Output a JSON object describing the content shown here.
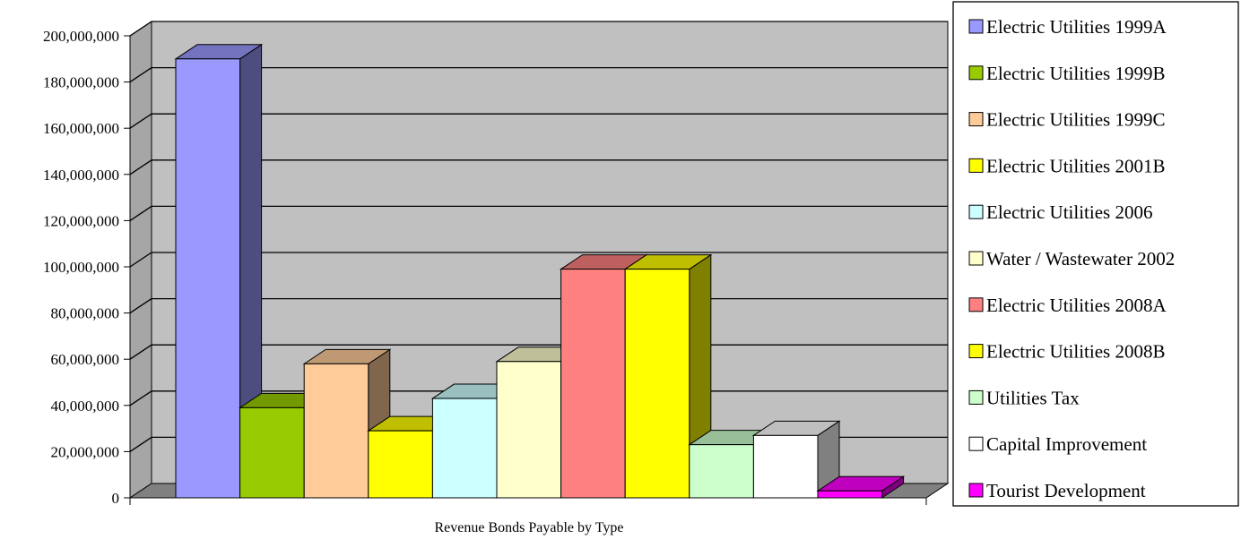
{
  "chart_data": {
    "type": "bar",
    "style": "3d-clustered-column",
    "xlabel": "Revenue Bonds Payable by Type",
    "ylabel": "",
    "ylim": [
      0,
      200000000
    ],
    "yticks": [
      "0",
      "20,000,000",
      "40,000,000",
      "60,000,000",
      "80,000,000",
      "100,000,000",
      "120,000,000",
      "140,000,000",
      "160,000,000",
      "180,000,000",
      "200,000,000"
    ],
    "grid": true,
    "legend_position": "right",
    "colors": {
      "plot_back_wall": "#c0c0c0",
      "floor": "#808080",
      "gridline": "#000000"
    },
    "series": [
      {
        "name": "Electric Utilities 1999A",
        "value": 190000000,
        "color": "#9999ff"
      },
      {
        "name": "Electric Utilities 1999B",
        "value": 39000000,
        "color": "#99cc00"
      },
      {
        "name": "Electric Utilities 1999C",
        "value": 58000000,
        "color": "#ffcc99"
      },
      {
        "name": "Electric Utilities 2001B",
        "value": 29000000,
        "color": "#ffff00"
      },
      {
        "name": "Electric Utilities 2006",
        "value": 43000000,
        "color": "#ccffff"
      },
      {
        "name": "Water / Wastewater 2002",
        "value": 59000000,
        "color": "#ffffcc"
      },
      {
        "name": "Electric Utilities 2008A",
        "value": 99000000,
        "color": "#ff8080"
      },
      {
        "name": "Electric Utilities 2008B",
        "value": 99000000,
        "color": "#ffff00"
      },
      {
        "name": "Utilities Tax",
        "value": 23000000,
        "color": "#ccffcc"
      },
      {
        "name": "Capital Improvement",
        "value": 27000000,
        "color": "#ffffff"
      },
      {
        "name": "Tourist Development",
        "value": 3000000,
        "color": "#ff00ff"
      }
    ]
  }
}
